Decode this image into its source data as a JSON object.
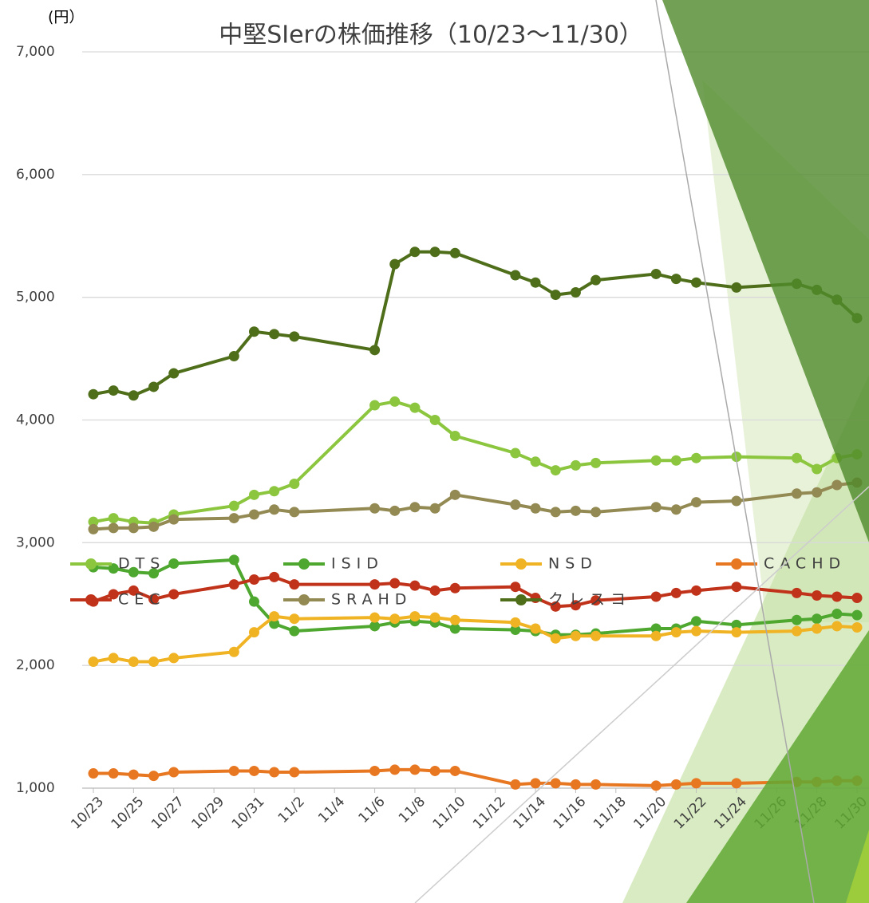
{
  "chart_data": {
    "type": "line",
    "title": "中堅SIerの株価推移（10/23～11/30）",
    "y_unit": "(円）",
    "x": [
      "10/23",
      "10/24",
      "10/25",
      "10/26",
      "10/27",
      "10/30",
      "10/31",
      "11/1",
      "11/2",
      "11/6",
      "11/7",
      "11/8",
      "11/9",
      "11/10",
      "11/13",
      "11/14",
      "11/15",
      "11/16",
      "11/17",
      "11/20",
      "11/21",
      "11/22",
      "11/24",
      "11/27",
      "11/28",
      "11/29",
      "11/30"
    ],
    "xticks": [
      "10/23",
      "10/25",
      "10/27",
      "10/29",
      "10/31",
      "11/2",
      "11/4",
      "11/6",
      "11/8",
      "11/10",
      "11/12",
      "11/14",
      "11/16",
      "11/18",
      "11/20",
      "11/22",
      "11/24",
      "11/26",
      "11/28",
      "11/30"
    ],
    "ylim": [
      1000,
      7000
    ],
    "yticks": [
      {
        "value": 1000,
        "label": "1,000"
      },
      {
        "value": 2000,
        "label": "2,000"
      },
      {
        "value": 3000,
        "label": "3,000"
      },
      {
        "value": 4000,
        "label": "4,000"
      },
      {
        "value": 5000,
        "label": "5,000"
      },
      {
        "value": 6000,
        "label": "6,000"
      },
      {
        "value": 7000,
        "label": "7,000"
      }
    ],
    "grid": true,
    "legend": "bottom",
    "series": [
      {
        "name": "DTS",
        "color": "#8cc63f",
        "values": [
          3170,
          3200,
          3170,
          3160,
          3230,
          3300,
          3390,
          3420,
          3480,
          4120,
          4150,
          4100,
          4000,
          3870,
          3730,
          3660,
          3590,
          3630,
          3650,
          3670,
          3670,
          3690,
          3700,
          3690,
          3600,
          3690,
          3720
        ]
      },
      {
        "name": "ISID",
        "color": "#4ea72e",
        "values": [
          2800,
          2790,
          2760,
          2750,
          2830,
          2860,
          2520,
          2340,
          2280,
          2320,
          2350,
          2360,
          2350,
          2300,
          2290,
          2280,
          2250,
          2250,
          2260,
          2300,
          2300,
          2360,
          2330,
          2370,
          2380,
          2420,
          2410
        ]
      },
      {
        "name": "NSD",
        "color": "#f0b323",
        "values": [
          2030,
          2060,
          2030,
          2030,
          2060,
          2110,
          2270,
          2400,
          2380,
          2390,
          2380,
          2400,
          2390,
          2370,
          2350,
          2300,
          2220,
          2240,
          2240,
          2240,
          2270,
          2280,
          2270,
          2280,
          2300,
          2320,
          2310
        ]
      },
      {
        "name": "CACHD",
        "color": "#e87722",
        "values": [
          1120,
          1120,
          1110,
          1100,
          1130,
          1140,
          1140,
          1130,
          1130,
          1140,
          1150,
          1150,
          1140,
          1140,
          1030,
          1040,
          1040,
          1030,
          1030,
          1020,
          1030,
          1040,
          1040,
          1050,
          1050,
          1060,
          1060
        ]
      },
      {
        "name": "CEC",
        "color": "#c0331a",
        "values": [
          2520,
          2580,
          2610,
          2540,
          2580,
          2660,
          2700,
          2720,
          2660,
          2660,
          2670,
          2650,
          2610,
          2630,
          2640,
          2550,
          2480,
          2490,
          2530,
          2560,
          2590,
          2610,
          2640,
          2590,
          2570,
          2560,
          2550
        ]
      },
      {
        "name": "SRAHD",
        "color": "#938953",
        "values": [
          3110,
          3120,
          3120,
          3130,
          3190,
          3200,
          3230,
          3270,
          3250,
          3280,
          3260,
          3290,
          3280,
          3390,
          3310,
          3280,
          3250,
          3260,
          3250,
          3290,
          3270,
          3330,
          3340,
          3400,
          3410,
          3470,
          3490
        ]
      },
      {
        "name": "クレスコ",
        "color": "#4f6e1a",
        "values": [
          4210,
          4240,
          4200,
          4270,
          4380,
          4520,
          4720,
          4700,
          4680,
          4570,
          5270,
          5370,
          5370,
          5360,
          5180,
          5120,
          5020,
          5040,
          5140,
          5190,
          5150,
          5120,
          5080,
          5110,
          5060,
          4980,
          4830
        ]
      }
    ]
  }
}
